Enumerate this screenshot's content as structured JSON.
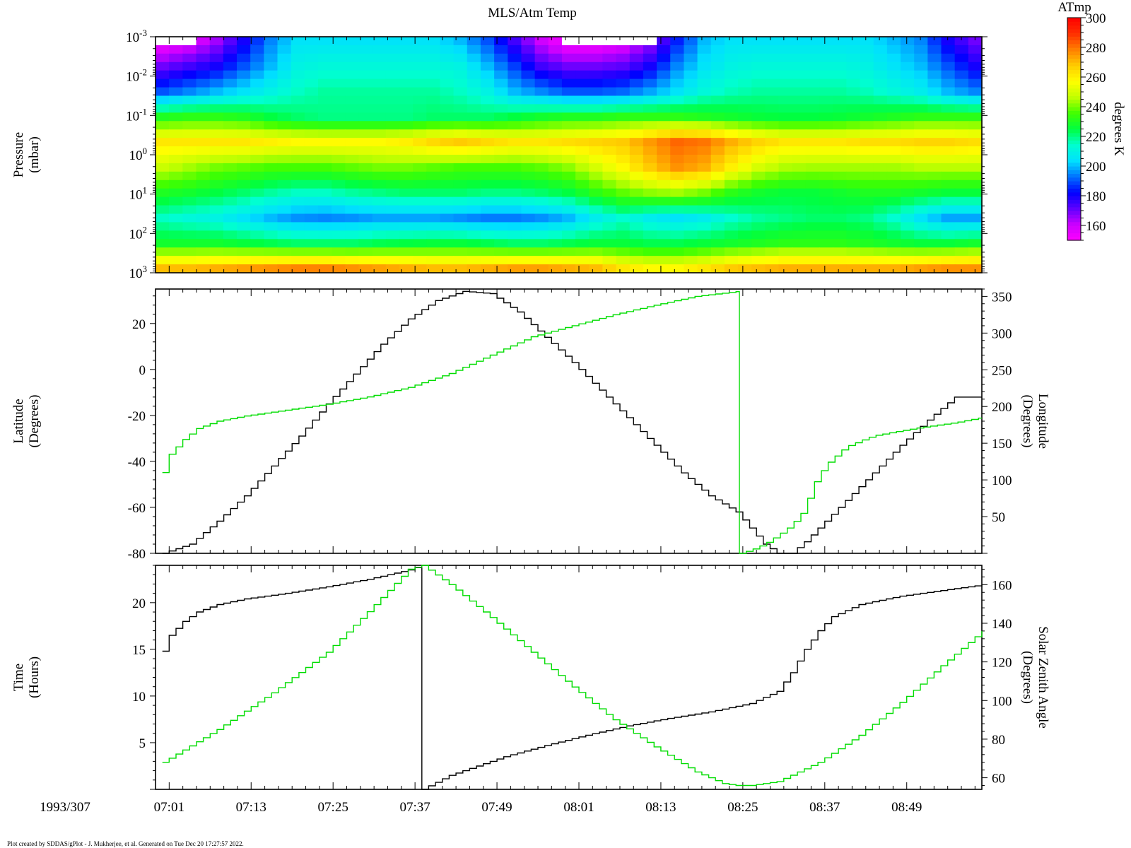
{
  "colors": {
    "axis": "#000000",
    "series_black": "#000000",
    "series_green": "#00dd00",
    "colormap": [
      "#ff00ff",
      "#cc00ff",
      "#6000ff",
      "#0000ff",
      "#0070ff",
      "#00e0ff",
      "#00ffd0",
      "#00ff40",
      "#40ff00",
      "#c0ff00",
      "#ffff00",
      "#ffcc00",
      "#ff8000",
      "#ff3000",
      "#ff0000"
    ]
  },
  "chart_data": [
    {
      "type": "heatmap",
      "title": "MLS/Atm Temp",
      "ylabel_lines": [
        "Pressure",
        "(mbar)"
      ],
      "yscale": "log-inverted",
      "ylim_mbar": [
        1000,
        0.001
      ],
      "ytick_labels": [
        {
          "base": "10",
          "exp": "-3",
          "value": 0.001
        },
        {
          "base": "10",
          "exp": "-2",
          "value": 0.01
        },
        {
          "base": "10",
          "exp": "-1",
          "value": 0.1
        },
        {
          "base": "10",
          "exp": "0",
          "value": 1
        },
        {
          "base": "10",
          "exp": "1",
          "value": 10
        },
        {
          "base": "10",
          "exp": "2",
          "value": 100
        },
        {
          "base": "10",
          "exp": "3",
          "value": 1000
        }
      ],
      "colorbar": {
        "label_top": "ATmp",
        "label_side": "degrees K",
        "range": [
          150,
          300
        ],
        "ticks": [
          160,
          180,
          200,
          220,
          240,
          260,
          280,
          300
        ]
      },
      "approx_temperature_K_grid": {
        "note_rows_top_to_bottom_pressure_levels": "rows from 1e-3 mbar to 1e3 mbar, columns are 4-minute steps from 07:00 to 09:00",
        "rows": [
          [
            150,
            155,
            165,
            180,
            195,
            205,
            205,
            205,
            205,
            205,
            205,
            200,
            190,
            175,
            160,
            150,
            150,
            155,
            165,
            185,
            200,
            205,
            205,
            205,
            205,
            205,
            205,
            200,
            195,
            180,
            170
          ],
          [
            170,
            175,
            180,
            190,
            200,
            210,
            212,
            212,
            212,
            212,
            212,
            210,
            200,
            188,
            175,
            170,
            170,
            172,
            180,
            195,
            205,
            210,
            212,
            212,
            212,
            212,
            210,
            205,
            200,
            190,
            180
          ],
          [
            190,
            195,
            200,
            205,
            210,
            215,
            218,
            218,
            218,
            218,
            218,
            215,
            210,
            200,
            195,
            190,
            190,
            192,
            198,
            205,
            212,
            216,
            218,
            218,
            218,
            218,
            216,
            212,
            208,
            200,
            195
          ],
          [
            230,
            232,
            232,
            230,
            225,
            222,
            220,
            220,
            220,
            220,
            222,
            222,
            222,
            225,
            228,
            230,
            230,
            232,
            232,
            232,
            230,
            228,
            226,
            225,
            225,
            226,
            228,
            230,
            232,
            232,
            232
          ],
          [
            262,
            262,
            262,
            262,
            260,
            258,
            258,
            258,
            258,
            260,
            265,
            268,
            265,
            262,
            262,
            264,
            266,
            268,
            275,
            282,
            280,
            272,
            266,
            262,
            262,
            262,
            264,
            264,
            266,
            266,
            264
          ],
          [
            248,
            244,
            240,
            238,
            236,
            236,
            236,
            238,
            240,
            240,
            238,
            236,
            236,
            236,
            238,
            242,
            250,
            258,
            268,
            276,
            272,
            260,
            250,
            245,
            244,
            244,
            244,
            244,
            246,
            246,
            246
          ],
          [
            230,
            228,
            225,
            222,
            218,
            215,
            215,
            218,
            220,
            222,
            222,
            222,
            220,
            220,
            222,
            225,
            232,
            238,
            242,
            244,
            240,
            232,
            228,
            226,
            226,
            228,
            230,
            230,
            228,
            226,
            226
          ],
          [
            215,
            212,
            210,
            205,
            200,
            196,
            195,
            196,
            198,
            198,
            198,
            196,
            194,
            194,
            196,
            200,
            208,
            214,
            208,
            205,
            208,
            214,
            218,
            220,
            222,
            222,
            220,
            214,
            205,
            198,
            198
          ],
          [
            228,
            228,
            228,
            226,
            224,
            222,
            222,
            222,
            224,
            225,
            226,
            226,
            224,
            222,
            222,
            224,
            226,
            226,
            224,
            224,
            226,
            228,
            230,
            232,
            232,
            232,
            230,
            228,
            226,
            226,
            228
          ],
          [
            270,
            270,
            272,
            274,
            276,
            278,
            278,
            276,
            274,
            272,
            270,
            270,
            272,
            274,
            274,
            272,
            270,
            262,
            258,
            258,
            262,
            268,
            270,
            272,
            272,
            272,
            272,
            272,
            274,
            276,
            276
          ]
        ]
      }
    },
    {
      "type": "line",
      "step": true,
      "ylabel_lines": [
        "Latitude",
        "(Degrees)"
      ],
      "y2label_lines": [
        "Longitude",
        "(Degrees)"
      ],
      "ylim": [
        -80,
        35
      ],
      "yticks": [
        20,
        0,
        -20,
        -40,
        -60,
        -80
      ],
      "y2lim": [
        0,
        360
      ],
      "y2ticks": [
        350,
        300,
        250,
        200,
        150,
        100,
        50
      ],
      "series": [
        {
          "color": "#000000",
          "axis": "left",
          "x_minutes_from_0700": [
            0,
            4,
            8,
            12,
            16,
            20,
            24,
            28,
            32,
            36,
            40,
            44,
            48,
            52,
            56,
            60,
            64,
            68,
            72,
            76,
            80,
            84,
            86,
            88,
            90,
            92,
            94,
            96,
            100,
            104,
            108,
            112,
            116,
            120
          ],
          "y": [
            -80,
            -76,
            -66,
            -55,
            -42,
            -29,
            -15,
            -2,
            11,
            22,
            30,
            34,
            33,
            25,
            14,
            3,
            -9,
            -21,
            -33,
            -45,
            -55,
            -62,
            -69,
            -76,
            -80,
            -80,
            -75,
            -69,
            -57,
            -45,
            -33,
            -22,
            -12,
            -12
          ]
        },
        {
          "color": "#00dd00",
          "axis": "right",
          "x_minutes_from_0700": [
            0,
            1,
            3,
            5,
            8,
            12,
            18,
            24,
            30,
            36,
            42,
            48,
            54,
            60,
            66,
            72,
            78,
            84.5,
            84.5,
            86,
            88,
            90,
            92,
            94,
            95,
            97,
            100,
            104,
            110,
            116,
            120
          ],
          "y": [
            110,
            135,
            155,
            170,
            180,
            187,
            195,
            203,
            213,
            226,
            245,
            270,
            295,
            310,
            325,
            338,
            350,
            357,
            0,
            4,
            12,
            24,
            38,
            60,
            90,
            120,
            145,
            160,
            170,
            178,
            185
          ]
        }
      ]
    },
    {
      "type": "line",
      "step": true,
      "ylabel_lines": [
        "Time",
        "(Hours)"
      ],
      "y2label_lines": [
        "Solar Zenith Angle",
        "(Degrees)"
      ],
      "ylim": [
        0,
        24
      ],
      "yticks": [
        20,
        15,
        10,
        5
      ],
      "y2lim": [
        54,
        170
      ],
      "y2ticks": [
        160,
        140,
        120,
        100,
        80,
        60
      ],
      "series": [
        {
          "color": "#000000",
          "axis": "left",
          "x_minutes_from_0700": [
            0,
            1,
            3,
            5,
            8,
            12,
            18,
            24,
            30,
            36,
            38,
            38,
            42,
            46,
            50,
            56,
            62,
            68,
            74,
            80,
            86,
            90,
            92,
            94,
            96,
            98,
            102,
            108,
            114,
            120
          ],
          "y": [
            14.8,
            16.5,
            18,
            19,
            19.8,
            20.4,
            21,
            21.7,
            22.5,
            23.5,
            24,
            0,
            1.5,
            2.5,
            3.5,
            4.7,
            5.8,
            6.8,
            7.6,
            8.3,
            9.2,
            10.5,
            12.5,
            15,
            17,
            18.5,
            19.8,
            20.7,
            21.3,
            21.9
          ]
        },
        {
          "color": "#00dd00",
          "axis": "right",
          "x_minutes_from_0700": [
            0,
            8,
            16,
            24,
            30,
            36,
            38,
            42,
            48,
            54,
            60,
            66,
            72,
            78,
            82,
            84,
            86,
            90,
            96,
            102,
            108,
            114,
            120
          ],
          "y": [
            68,
            85,
            104,
            125,
            146,
            168,
            170,
            160,
            143,
            125,
            107,
            90,
            76,
            63,
            57,
            56,
            56,
            58,
            68,
            82,
            99,
            118,
            136
          ]
        }
      ]
    }
  ],
  "x_axis": {
    "range_minutes_from_0700": [
      -1,
      120
    ],
    "tick_labels": [
      {
        "label": "07:01",
        "minute": 1
      },
      {
        "label": "07:13",
        "minute": 13
      },
      {
        "label": "07:25",
        "minute": 25
      },
      {
        "label": "07:37",
        "minute": 37
      },
      {
        "label": "07:49",
        "minute": 49
      },
      {
        "label": "08:01",
        "minute": 61
      },
      {
        "label": "08:13",
        "minute": 73
      },
      {
        "label": "08:25",
        "minute": 85
      },
      {
        "label": "08:37",
        "minute": 97
      },
      {
        "label": "08:49",
        "minute": 109
      }
    ],
    "date_label": "1993/307"
  },
  "footer": "Plot created by SDDAS/gPlot - J. Mukherjee, et al.  Generated on Tue Dec 20 17:27:57 2022."
}
